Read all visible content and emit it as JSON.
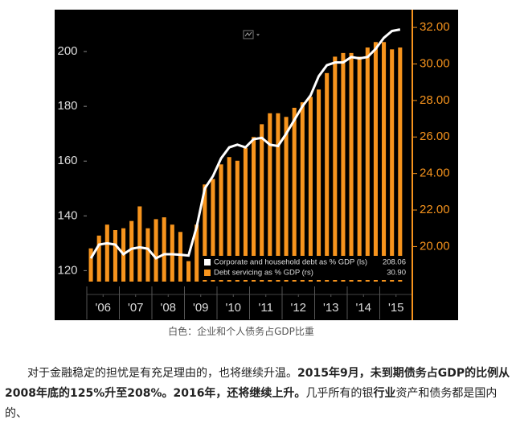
{
  "chart_data": {
    "type": "combo",
    "x": [
      2006.125,
      2006.375,
      2006.625,
      2006.875,
      2007.125,
      2007.375,
      2007.625,
      2007.875,
      2008.125,
      2008.375,
      2008.625,
      2008.875,
      2009.125,
      2009.375,
      2009.625,
      2009.875,
      2010.125,
      2010.375,
      2010.625,
      2010.875,
      2011.125,
      2011.375,
      2011.625,
      2011.875,
      2012.125,
      2012.375,
      2012.625,
      2012.875,
      2013.125,
      2013.375,
      2013.625,
      2013.875,
      2014.125,
      2014.375,
      2014.625,
      2014.875,
      2015.125,
      2015.375,
      2015.625
    ],
    "xlim": [
      2006,
      2016
    ],
    "xticks": [
      {
        "value": 2006.5,
        "label": "'06"
      },
      {
        "value": 2007.5,
        "label": "'07"
      },
      {
        "value": 2008.5,
        "label": "'08"
      },
      {
        "value": 2009.5,
        "label": "'09"
      },
      {
        "value": 2010.5,
        "label": "'10"
      },
      {
        "value": 2011.5,
        "label": "'11"
      },
      {
        "value": 2012.5,
        "label": "'12"
      },
      {
        "value": 2013.5,
        "label": "'13"
      },
      {
        "value": 2014.5,
        "label": "'14"
      },
      {
        "value": 2015.5,
        "label": "'15"
      }
    ],
    "ylim": [
      116,
      215
    ],
    "yticks": [
      120,
      140,
      160,
      180,
      200
    ],
    "y2lim": [
      18.08,
      32.93
    ],
    "y2ticks": [
      {
        "value": 20,
        "label": "20.00"
      },
      {
        "value": 22,
        "label": "22.00"
      },
      {
        "value": 24,
        "label": "24.00"
      },
      {
        "value": 26,
        "label": "26.00"
      },
      {
        "value": 28,
        "label": "28.00"
      },
      {
        "value": 30,
        "label": "30.00"
      },
      {
        "value": 32,
        "label": "32.00"
      }
    ],
    "legend": "lower right",
    "series": [
      {
        "name": "Corporate and household debt as % GDP (ls)",
        "type": "line",
        "color": "#ffffff",
        "legend_value": "208.06",
        "values": [
          124.5,
          129.5,
          130,
          129.5,
          126,
          128,
          128.5,
          128,
          124.5,
          126,
          126,
          125.8,
          125.5,
          136,
          150,
          154.5,
          161,
          165,
          166,
          165,
          168,
          168.5,
          166,
          165.5,
          170,
          175,
          180,
          184,
          191,
          195,
          196,
          196,
          198,
          197.5,
          198,
          201,
          205,
          207.5,
          208.06
        ]
      },
      {
        "name": "Debt servicing as % GDP (rs)",
        "type": "bar",
        "axis": "y2",
        "color": "#f7941d",
        "legend_value": "30.90",
        "values": [
          19.9,
          20.6,
          21.2,
          20.9,
          21.0,
          21.4,
          22.2,
          21.0,
          21.5,
          21.6,
          21.2,
          20.8,
          19.2,
          21.2,
          23.4,
          23.7,
          24.5,
          24.9,
          24.7,
          25.4,
          26.0,
          26.7,
          27.3,
          27.3,
          27.1,
          27.6,
          27.9,
          28.2,
          28.6,
          29.5,
          30.4,
          30.6,
          30.6,
          30.4,
          30.9,
          31.2,
          31.2,
          30.8,
          30.9
        ]
      }
    ]
  },
  "article": {
    "caption": "白色：企业和个人债务占GDP比重",
    "paragraph": [
      {
        "text": "对于金融稳定的担忧是有充足理由的，也将继续升温。",
        "bold": false
      },
      {
        "text": "2015年9月，未到期债务占GDP的比例从2008年底的125%升至208%。2016年，还将继续上升。",
        "bold": true
      },
      {
        "text": "几乎所有的银",
        "bold": false
      },
      {
        "text": "行业",
        "bold": true
      },
      {
        "text": "资产和债务都是国内的、",
        "bold": false
      }
    ]
  }
}
